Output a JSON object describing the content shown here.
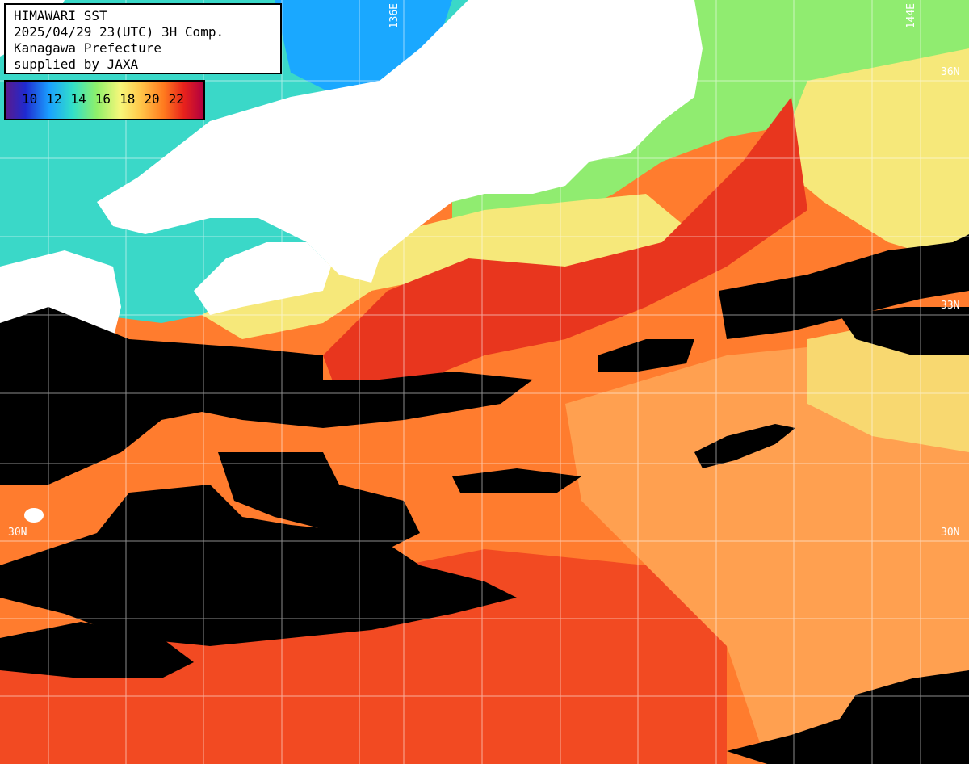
{
  "header": {
    "line1": "HIMAWARI SST",
    "line2": "2025/04/29 23(UTC) 3H Comp.",
    "line3": "Kanagawa Prefecture",
    "line4": "supplied by JAXA"
  },
  "legend": {
    "labels": [
      "10",
      "12",
      "14",
      "16",
      "18",
      "20",
      "22"
    ]
  },
  "grid_labels": {
    "lon_136": "136E",
    "lon_144": "144E",
    "lat_36": "36N",
    "lat_33": "33N",
    "lat_30_left": "30N",
    "lat_30_right": "30N"
  },
  "colors": {
    "land": "#ffffff",
    "cloud": "#000000",
    "warm_red": "#e8321c",
    "orange": "#ff7a2a",
    "light_orange": "#ffb060",
    "yellow": "#f8e878",
    "green": "#8ff06a",
    "cyan": "#30d8d0",
    "blue": "#1a90ff"
  }
}
